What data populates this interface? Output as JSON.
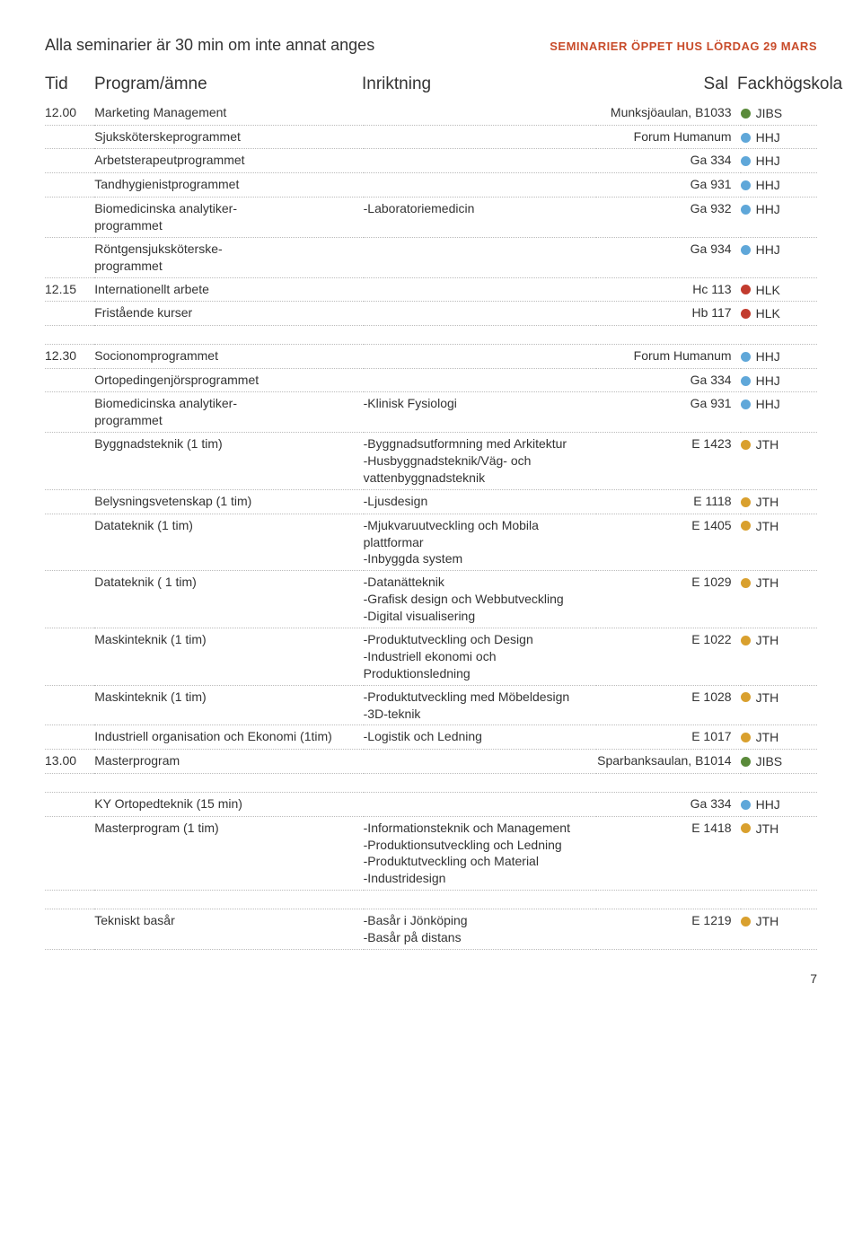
{
  "intro": "Alla seminarier är 30 min om inte annat anges",
  "section_head": "SEMINARIER ÖPPET HUS LÖRDAG 29 MARS",
  "columns": {
    "tid": "Tid",
    "program": "Program/ämne",
    "inriktning": "Inriktning",
    "sal": "Sal",
    "fack": "Fackhögskola"
  },
  "colors": {
    "JIBS": "#5a8a3a",
    "HHJ": "#5fa7d9",
    "HLK": "#c23b2e",
    "JTH": "#d9a02e"
  },
  "blocks": [
    {
      "rows": [
        {
          "tid": "12.00",
          "program": "Marketing Management",
          "inr": "",
          "sal": "Munksjöaulan, B1033",
          "fack": "JIBS"
        },
        {
          "tid": "",
          "program": "Sjuksköterskeprogrammet",
          "inr": "",
          "sal": "Forum Humanum",
          "fack": "HHJ"
        },
        {
          "tid": "",
          "program": "Arbetsterapeutprogrammet",
          "inr": "",
          "sal": "Ga 334",
          "fack": "HHJ"
        },
        {
          "tid": "",
          "program": "Tandhygienistprogrammet",
          "inr": "",
          "sal": "Ga 931",
          "fack": "HHJ"
        },
        {
          "tid": "",
          "program": "Biomedicinska analytiker-\nprogrammet",
          "inr": "-Laboratoriemedicin",
          "sal": "Ga 932",
          "fack": "HHJ"
        },
        {
          "tid": "",
          "program": "Röntgensjuksköterske-\nprogrammet",
          "inr": "",
          "sal": "Ga 934",
          "fack": "HHJ"
        },
        {
          "tid": "12.15",
          "program": "Internationellt arbete",
          "inr": "",
          "sal": "Hc 113",
          "fack": "HLK"
        },
        {
          "tid": "",
          "program": "Fristående kurser",
          "inr": "",
          "sal": "Hb 117",
          "fack": "HLK"
        }
      ]
    },
    {
      "rows": [
        {
          "tid": "12.30",
          "program": "Socionomprogrammet",
          "inr": "",
          "sal": "Forum Humanum",
          "fack": "HHJ"
        },
        {
          "tid": "",
          "program": "Ortopedingenjörsprogrammet",
          "inr": "",
          "sal": "Ga 334",
          "fack": "HHJ"
        },
        {
          "tid": "",
          "program": "Biomedicinska analytiker-\nprogrammet",
          "inr": "-Klinisk Fysiologi",
          "sal": "Ga 931",
          "fack": "HHJ"
        },
        {
          "tid": "",
          "program": "Byggnadsteknik (1 tim)",
          "inr": "-Byggnadsutformning med Arkitektur\n-Husbyggnadsteknik/Väg- och vattenbyggnadsteknik",
          "sal": "E 1423",
          "fack": "JTH"
        },
        {
          "tid": "",
          "program": "Belysningsvetenskap (1 tim)",
          "inr": "-Ljusdesign",
          "sal": "E 1118",
          "fack": "JTH"
        },
        {
          "tid": "",
          "program": "Datateknik (1 tim)",
          "inr": "-Mjukvaruutveckling och Mobila plattformar\n-Inbyggda system",
          "sal": "E 1405",
          "fack": "JTH"
        },
        {
          "tid": "",
          "program": "Datateknik ( 1 tim)",
          "inr": "-Datanätteknik\n-Grafisk design och Webbutveckling\n-Digital visualisering",
          "sal": "E 1029",
          "fack": "JTH"
        },
        {
          "tid": "",
          "program": "Maskinteknik (1 tim)",
          "inr": "-Produktutveckling och Design\n-Industriell ekonomi och Produktionsledning",
          "sal": "E 1022",
          "fack": "JTH"
        },
        {
          "tid": "",
          "program": "Maskinteknik (1 tim)",
          "inr": "-Produktutveckling med Möbeldesign\n-3D-teknik",
          "sal": "E 1028",
          "fack": "JTH"
        },
        {
          "tid": "",
          "program": "Industriell organisation och Ekonomi (1tim)",
          "inr": "-Logistik och Ledning",
          "sal": "E 1017",
          "fack": "JTH"
        },
        {
          "tid": "13.00",
          "program": "Masterprogram",
          "inr": "",
          "sal": "Sparbanksaulan, B1014",
          "fack": "JIBS"
        }
      ]
    },
    {
      "rows": [
        {
          "tid": "",
          "program": "KY Ortopedteknik (15 min)",
          "inr": "",
          "sal": "Ga 334",
          "fack": "HHJ"
        },
        {
          "tid": "",
          "program": "Masterprogram (1 tim)",
          "inr": "-Informationsteknik och Management\n-Produktionsutveckling och Ledning\n-Produktutveckling och Material\n-Industridesign",
          "sal": "E 1418",
          "fack": "JTH"
        }
      ]
    },
    {
      "rows": [
        {
          "tid": "",
          "program": "Tekniskt basår",
          "inr": "-Basår i Jönköping\n-Basår på distans",
          "sal": "E 1219",
          "fack": "JTH"
        }
      ]
    }
  ],
  "page_number": "7"
}
